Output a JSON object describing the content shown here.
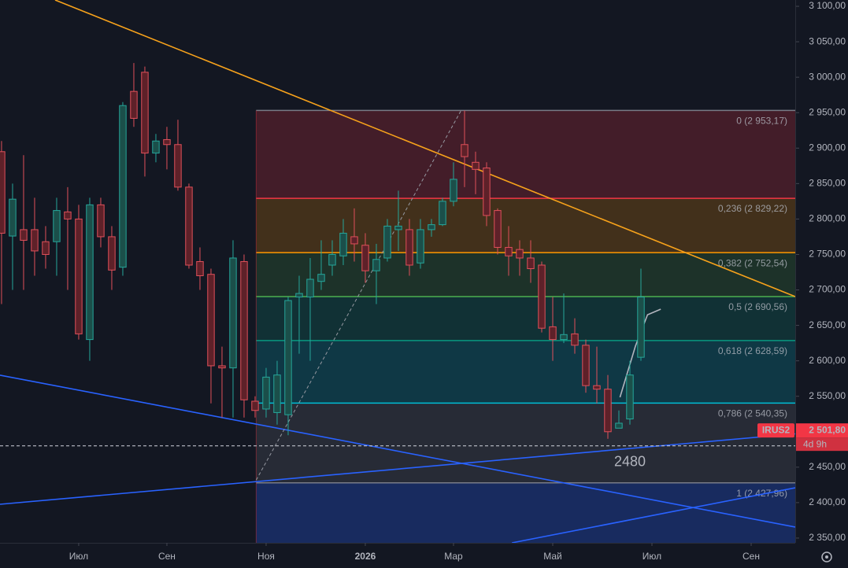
{
  "chart_data": {
    "type": "candlestick",
    "x": [
      0,
      1,
      2,
      3,
      4,
      5,
      6,
      7,
      8,
      9,
      10,
      11,
      12,
      13,
      14,
      15,
      16,
      17,
      18,
      19,
      20,
      21,
      22,
      23,
      24,
      25,
      26,
      27,
      28,
      29,
      30,
      31,
      32,
      33,
      34,
      35,
      36,
      37,
      38,
      39,
      40,
      41,
      42,
      43,
      44,
      45,
      46,
      47,
      48,
      49,
      50,
      51,
      52,
      53,
      54,
      55,
      56,
      57,
      58
    ],
    "open": [
      2895,
      2776,
      2785,
      2785,
      2768,
      2768,
      2810,
      2800,
      2630,
      2820,
      2775,
      2732,
      2980,
      3007,
      2893,
      2912,
      2905,
      2845,
      2740,
      2722,
      2593,
      2590,
      2740,
      2543,
      2532,
      2527,
      2524,
      2690,
      2690,
      2712,
      2735,
      2748,
      2775,
      2763,
      2727,
      2745,
      2785,
      2785,
      2738,
      2785,
      2792,
      2825,
      2905,
      2880,
      2872,
      2812,
      2760,
      2757,
      2745,
      2735,
      2648,
      2630,
      2638,
      2622,
      2565,
      2560,
      2505,
      2518,
      2605
    ],
    "high": [
      2910,
      2850,
      2890,
      2830,
      2790,
      2830,
      2845,
      2820,
      2830,
      2830,
      2790,
      2965,
      3020,
      3015,
      2920,
      2930,
      2940,
      2850,
      2760,
      2730,
      2620,
      2770,
      2750,
      2550,
      2590,
      2600,
      2690,
      2720,
      2745,
      2770,
      2770,
      2800,
      2815,
      2780,
      2765,
      2800,
      2840,
      2800,
      2800,
      2800,
      2830,
      2880,
      2953,
      2895,
      2880,
      2815,
      2790,
      2770,
      2770,
      2740,
      2690,
      2695,
      2660,
      2630,
      2620,
      2580,
      2530,
      2600,
      2730
    ],
    "low": [
      2680,
      2700,
      2700,
      2720,
      2730,
      2720,
      2700,
      2630,
      2600,
      2760,
      2700,
      2720,
      2930,
      2860,
      2880,
      2870,
      2840,
      2730,
      2700,
      2540,
      2520,
      2520,
      2520,
      2520,
      2520,
      2510,
      2495,
      2610,
      2600,
      2700,
      2720,
      2735,
      2740,
      2710,
      2680,
      2740,
      2755,
      2720,
      2730,
      2775,
      2790,
      2818,
      2845,
      2835,
      2790,
      2750,
      2720,
      2720,
      2710,
      2640,
      2600,
      2625,
      2610,
      2555,
      2540,
      2490,
      2505,
      2510,
      2600
    ],
    "close": [
      2780,
      2828,
      2770,
      2755,
      2750,
      2812,
      2800,
      2638,
      2820,
      2775,
      2728,
      2960,
      2942,
      2893,
      2910,
      2905,
      2845,
      2735,
      2720,
      2593,
      2590,
      2745,
      2545,
      2530,
      2577,
      2580,
      2685,
      2695,
      2715,
      2722,
      2750,
      2780,
      2765,
      2727,
      2743,
      2790,
      2790,
      2735,
      2785,
      2792,
      2825,
      2856,
      2888,
      2870,
      2805,
      2760,
      2748,
      2745,
      2730,
      2646,
      2630,
      2637,
      2622,
      2565,
      2560,
      2500,
      2512,
      2580,
      2690
    ],
    "up_color": "#26a69a",
    "up_fill": "#1b4f4a",
    "down_color": "#e0505a",
    "down_fill": "#5e2129",
    "xlim": [
      -0.14,
      72
    ],
    "ylim": [
      2343.3,
      3108.9
    ],
    "xticks": [
      {
        "value": 7,
        "label": "Июл"
      },
      {
        "value": 15,
        "label": "Сен"
      },
      {
        "value": 24,
        "label": "Ноя"
      },
      {
        "value": 33,
        "label": "2026"
      },
      {
        "value": 41,
        "label": "Мар"
      },
      {
        "value": 50,
        "label": "Май"
      },
      {
        "value": 59,
        "label": "Июл"
      },
      {
        "value": 68,
        "label": "Сен"
      }
    ],
    "yticks": [
      {
        "value": 2350,
        "label": "2 350,00"
      },
      {
        "value": 2400,
        "label": "2 400,00"
      },
      {
        "value": 2450,
        "label": "2 450,00"
      },
      {
        "value": 2500,
        "label": "2 500,00"
      },
      {
        "value": 2550,
        "label": "2 550,00"
      },
      {
        "value": 2600,
        "label": "2 600,00"
      },
      {
        "value": 2650,
        "label": "2 650,00"
      },
      {
        "value": 2700,
        "label": "2 700,00"
      },
      {
        "value": 2750,
        "label": "2 750,00"
      },
      {
        "value": 2800,
        "label": "2 800,00"
      },
      {
        "value": 2850,
        "label": "2 850,00"
      },
      {
        "value": 2900,
        "label": "2 900,00"
      },
      {
        "value": 2950,
        "label": "2 950,00"
      },
      {
        "value": 3000,
        "label": "3 000,00"
      },
      {
        "value": 3050,
        "label": "3 050,00"
      },
      {
        "value": 3100,
        "label": "3 100,00"
      }
    ],
    "grid": false,
    "fib_start_x": 23.1,
    "fib_levels": [
      {
        "value": 2953.17,
        "label": "0 (2 953,17)",
        "color": "#787b86",
        "fill": "rgba(242,54,69,0.22)"
      },
      {
        "value": 2829.22,
        "label": "0,236 (2 829,22)",
        "color": "#f23645",
        "fill": "rgba(255,152,0,0.2)"
      },
      {
        "value": 2752.54,
        "label": "0,382 (2 752,54)",
        "color": "#ff9800",
        "fill": "rgba(76,175,80,0.18)"
      },
      {
        "value": 2690.56,
        "label": "0,5 (2 690,56)",
        "color": "#4caf50",
        "fill": "rgba(8,153,129,0.2)"
      },
      {
        "value": 2628.59,
        "label": "0,618 (2 628,59)",
        "color": "#089981",
        "fill": "rgba(0,188,212,0.2)"
      },
      {
        "value": 2540.35,
        "label": "0,786 (2 540,35)",
        "color": "#00bcd4",
        "fill": "rgba(120,123,134,0.2)"
      },
      {
        "value": 2427.96,
        "label": "1 (2 427,96)",
        "color": "#787b86",
        "fill": "rgba(41,98,255,0.28)"
      }
    ],
    "lines": [
      {
        "color": "#f7a21b",
        "dashed": false,
        "x": [
          4.86,
          72
        ],
        "y": [
          3108.9,
          2690.6
        ]
      },
      {
        "color": "#2962ff",
        "dashed": false,
        "x": [
          -0.14,
          72
        ],
        "y": [
          2579.7,
          2365.5
        ]
      },
      {
        "color": "#2962ff",
        "dashed": false,
        "x": [
          -0.14,
          72
        ],
        "y": [
          2397.7,
          2497
        ]
      },
      {
        "color": "#2962ff",
        "dashed": false,
        "x": [
          46.3,
          72
        ],
        "y": [
          2343.3,
          2421
        ]
      },
      {
        "color": "#9598a1",
        "dashed": true,
        "x": [
          23.1,
          41.7
        ],
        "y": [
          2432,
          2953.5
        ]
      },
      {
        "color": "#b2b5be",
        "dashed": false,
        "x": [
          56.1,
          57.5,
          58.6,
          59.8
        ],
        "y": [
          2548.6,
          2620.7,
          2665,
          2672.8
        ]
      }
    ],
    "price_line": {
      "value": 2480,
      "color": "#f23645"
    },
    "last_price": {
      "symbol": "IRUS2",
      "value": 2501.8,
      "label": "2 501,80",
      "countdown": "4d 9h",
      "color": "#f23645"
    }
  }
}
